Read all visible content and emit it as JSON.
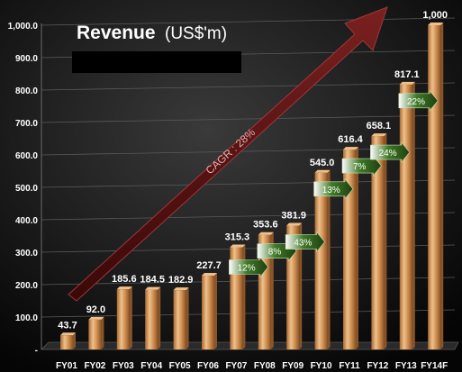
{
  "chart_data": {
    "type": "bar",
    "title_bold": "Revenue",
    "title_unit": "(US$'m)",
    "categories": [
      "FY01",
      "FY02",
      "FY03",
      "FY04",
      "FY05",
      "FY06",
      "FY07",
      "FY08",
      "FY09",
      "FY10",
      "FY11",
      "FY12",
      "FY13",
      "FY14F"
    ],
    "values": [
      43.7,
      92.0,
      185.6,
      184.5,
      182.9,
      227.7,
      315.3,
      353.6,
      381.9,
      545.0,
      616.4,
      658.1,
      817.1,
      1000
    ],
    "value_labels": [
      "43.7",
      "92.0",
      "185.6",
      "184.5",
      "182.9",
      "227.7",
      "315.3",
      "353.6",
      "381.9",
      "545.0",
      "616.4",
      "658.1",
      "817.1",
      "1,000"
    ],
    "yticks": [
      0,
      100,
      200,
      300,
      400,
      500,
      600,
      700,
      800,
      900,
      1000
    ],
    "ytick_labels": [
      "-",
      "100.0",
      "200.0",
      "300.0",
      "400.0",
      "500.0",
      "600.0",
      "700.0",
      "800.0",
      "900.0",
      "1,000.0"
    ],
    "ylim": [
      0,
      1000
    ],
    "grid": true,
    "growth_annotations": [
      {
        "between": [
          "FY07",
          "FY08"
        ],
        "label": "12%"
      },
      {
        "between": [
          "FY08",
          "FY09"
        ],
        "label": "8%"
      },
      {
        "between": [
          "FY09",
          "FY10"
        ],
        "label": "43%"
      },
      {
        "between": [
          "FY10",
          "FY11"
        ],
        "label": "13%"
      },
      {
        "between": [
          "FY11",
          "FY12"
        ],
        "label": "7%"
      },
      {
        "between": [
          "FY12",
          "FY13"
        ],
        "label": "24%"
      },
      {
        "between": [
          "FY13",
          "FY14F"
        ],
        "label": "22%"
      }
    ],
    "trend_arrow": {
      "label": "CAGR : 28%",
      "from": "FY01",
      "to": "FY14F"
    },
    "colors": {
      "bar": "#c8874a",
      "bar_light": "#f0c08a",
      "bar_dark": "#8a5528",
      "growth_arrow": "#2f5a1c",
      "trend_arrow": "#5a1212",
      "text": "#ffffff"
    }
  }
}
